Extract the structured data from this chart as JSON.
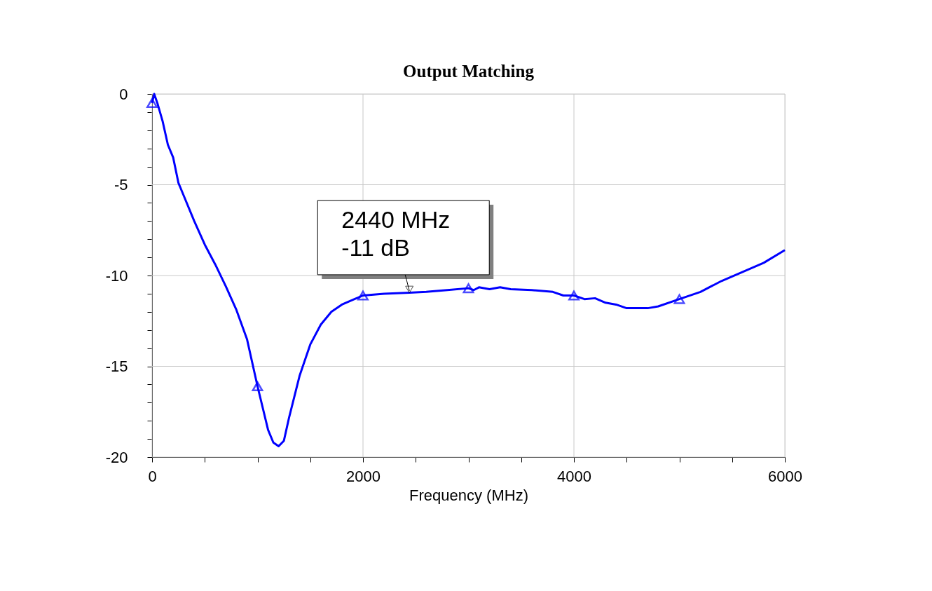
{
  "chart_data": {
    "type": "line",
    "title": "Output Matching",
    "xlabel": "Frequency (MHz)",
    "xlim": [
      0,
      6000
    ],
    "ylim": [
      -20,
      0
    ],
    "xticks": [
      0,
      {
        "value": 500,
        "label": null
      },
      {
        "value": 1000,
        "label": null
      },
      {
        "value": 1500,
        "label": null
      },
      2000,
      {
        "value": 2500,
        "label": null
      },
      {
        "value": 3000,
        "label": null
      },
      {
        "value": 3500,
        "label": null
      },
      4000,
      {
        "value": 4500,
        "label": null
      },
      {
        "value": 5000,
        "label": null
      },
      {
        "value": 5500,
        "label": null
      },
      6000
    ],
    "yticks": [
      -20,
      {
        "value": -19,
        "label": null
      },
      {
        "value": -18,
        "label": null
      },
      {
        "value": -17,
        "label": null
      },
      {
        "value": -16,
        "label": null
      },
      -15,
      {
        "value": -14,
        "label": null
      },
      {
        "value": -13,
        "label": null
      },
      {
        "value": -12,
        "label": null
      },
      {
        "value": -11,
        "label": null
      },
      -10,
      {
        "value": -9,
        "label": null
      },
      {
        "value": -8,
        "label": null
      },
      {
        "value": -7,
        "label": null
      },
      {
        "value": -6,
        "label": null
      },
      -5,
      {
        "value": -4,
        "label": null
      },
      {
        "value": -3,
        "label": null
      },
      {
        "value": -2,
        "label": null
      },
      {
        "value": -1,
        "label": null
      },
      0
    ],
    "grid": true,
    "annotations": [
      {
        "text": "2440 MHz\n-11 dB",
        "x": 2440,
        "y": -11
      }
    ],
    "series": [
      {
        "color": "#0000ff",
        "line_style": "solid",
        "marker": "none",
        "x": [
          0,
          20,
          50,
          100,
          150,
          200,
          250,
          300,
          400,
          500,
          600,
          700,
          800,
          900,
          1000,
          1100,
          1150,
          1200,
          1250,
          1300,
          1400,
          1500,
          1600,
          1700,
          1800,
          1900,
          2000,
          2200,
          2440,
          2600,
          2800,
          3000,
          3050,
          3100,
          3200,
          3300,
          3400,
          3600,
          3800,
          3900,
          4000,
          4100,
          4200,
          4300,
          4400,
          4500,
          4600,
          4700,
          4800,
          5000,
          5200,
          5400,
          5600,
          5800,
          6000
        ],
        "values": [
          -0.5,
          0,
          -0.5,
          -1.5,
          -2.8,
          -3.5,
          -4.9,
          -5.6,
          -7,
          -8.3,
          -9.4,
          -10.6,
          -11.9,
          -13.5,
          -16.1,
          -18.5,
          -19.2,
          -19.4,
          -19.1,
          -17.8,
          -15.5,
          -13.8,
          -12.7,
          -12,
          -11.6,
          -11.35,
          -11.1,
          -11,
          -10.95,
          -10.9,
          -10.8,
          -10.7,
          -10.8,
          -10.65,
          -10.75,
          -10.65,
          -10.75,
          -10.8,
          -10.9,
          -11.1,
          -11.1,
          -11.3,
          -11.25,
          -11.5,
          -11.6,
          -11.8,
          -11.8,
          -11.8,
          -11.7,
          -11.3,
          -10.9,
          -10.3,
          -9.8,
          -9.3,
          -8.6
        ]
      },
      {
        "type": "scatter",
        "color": "#0000ff",
        "marker": "triangle",
        "x": [
          0,
          1000,
          2000,
          3000,
          4000,
          5000
        ],
        "values": [
          -0.5,
          -16.1,
          -11.1,
          -10.7,
          -11.1,
          -11.3
        ]
      }
    ]
  }
}
